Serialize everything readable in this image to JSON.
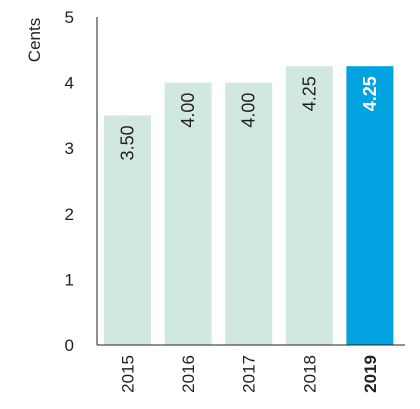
{
  "chart_data": {
    "type": "bar",
    "categories": [
      "2015",
      "2016",
      "2017",
      "2018",
      "2019"
    ],
    "values": [
      3.5,
      4.0,
      4.0,
      4.25,
      4.25
    ],
    "data_labels": [
      "3.50",
      "4.00",
      "4.00",
      "4.25",
      "4.25"
    ],
    "highlight": [
      false,
      false,
      false,
      false,
      true
    ],
    "ylabel": "Cents",
    "yticks": [
      "0",
      "1",
      "2",
      "3",
      "4",
      "5"
    ],
    "ylim": [
      0,
      5
    ],
    "grid": false,
    "colors": {
      "bar": "#d1e8df",
      "highlight_bar": "#00a3e0",
      "label": "#231f20",
      "highlight_label": "#ffffff",
      "axis": "#231f20"
    }
  }
}
